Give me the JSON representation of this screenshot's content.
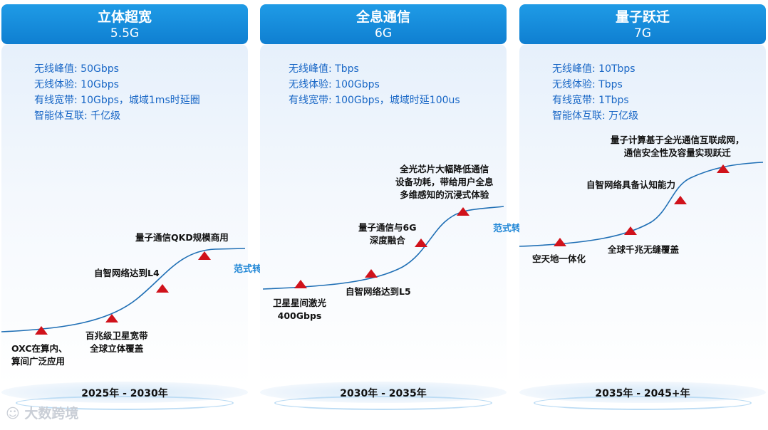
{
  "stages": [
    {
      "title": "立体超宽",
      "subtitle": "5.5G",
      "specs": [
        "无线峰值: 50Gbps",
        "无线体验: 10Gbps",
        "有线宽带: 10Gbps，城域1ms时延圈",
        "智能体互联: 千亿级"
      ],
      "milestones": [
        "OXC在算内、\n算间广泛应用",
        "百兆级卫星宽带\n全球立体覆盖",
        "自智网络达到L4",
        "量子通信QKD规模商用"
      ],
      "period": "2025年 - 2030年"
    },
    {
      "title": "全息通信",
      "subtitle": "6G",
      "specs": [
        "无线峰值: Tbps",
        "无线体验: 100Gbps",
        "有线宽带: 100Gbps，城域时延100us"
      ],
      "milestones": [
        "卫星星间激光\n400Gbps",
        "自智网络达到L5",
        "量子通信与6G\n深度融合",
        "全光芯片大幅降低通信\n设备功耗，带给用户全息\n多维感知的沉浸式体验"
      ],
      "period": "2030年 - 2035年"
    },
    {
      "title": "量子跃迁",
      "subtitle": "7G",
      "specs": [
        "无线峰值: 10Tbps",
        "无线体验: Tbps",
        "有线宽带: 1Tbps",
        "智能体互联: 万亿级"
      ],
      "milestones": [
        "空天地一体化",
        "全球千兆无缝覆盖",
        "自智网络具备认知能力",
        "量子计算基于全光通信互联成网，\n通信安全性及容量实现跃迁"
      ],
      "period": "2035年 - 2045+年"
    }
  ],
  "transitions": [
    "范式转移",
    "范式转移"
  ],
  "watermark": "大数跨境",
  "colors": {
    "header": "#1389d8",
    "spec_text": "#1967c6",
    "curve": "#1f6fb5",
    "marker": "#d0121b"
  }
}
